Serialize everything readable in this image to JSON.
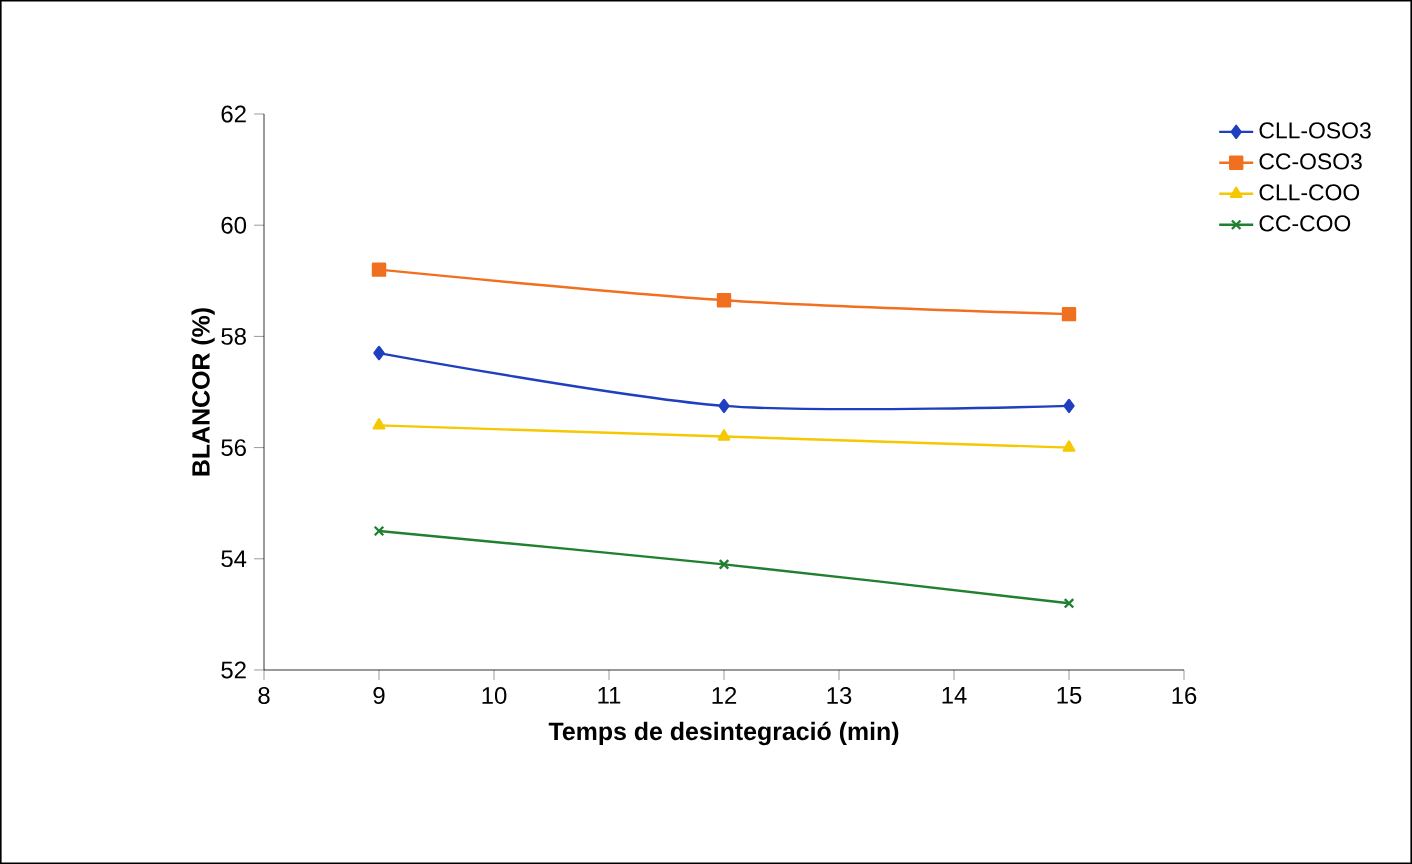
{
  "chart_data": {
    "type": "line",
    "xlabel": "Temps de desintegració (min)",
    "ylabel": "BLANCOR (%)",
    "x": [
      9,
      12,
      15
    ],
    "series": [
      {
        "name": "CLL-OSO3",
        "color": "#1f3fbf",
        "values": [
          57.7,
          56.75,
          56.75
        ],
        "marker": "diamond"
      },
      {
        "name": "CC-OSO3",
        "color": "#f07020",
        "values": [
          59.2,
          58.65,
          58.4
        ],
        "marker": "square"
      },
      {
        "name": "CLL-COO",
        "color": "#f5c800",
        "values": [
          56.4,
          56.2,
          56.0
        ],
        "marker": "triangle"
      },
      {
        "name": "CC-COO",
        "color": "#208030",
        "values": [
          54.5,
          53.9,
          53.2
        ],
        "marker": "cross"
      }
    ],
    "xlim": [
      8,
      16
    ],
    "xticks": [
      8,
      9,
      10,
      11,
      12,
      13,
      14,
      15,
      16
    ],
    "ylim": [
      52,
      62
    ],
    "yticks": [
      52,
      54,
      56,
      58,
      60,
      62
    ],
    "grid": false,
    "legend": "right",
    "line_style": "solid"
  }
}
